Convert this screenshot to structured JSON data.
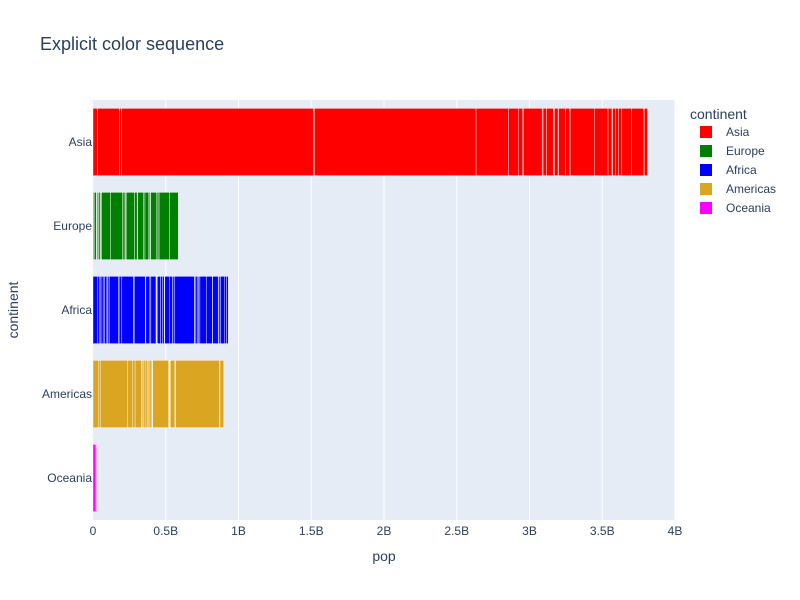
{
  "chart_data": {
    "type": "bar",
    "orientation": "horizontal",
    "barmode": "stack",
    "title": "Explicit color sequence",
    "xlabel": "pop",
    "ylabel": "continent",
    "xlim": [
      0,
      4000000000
    ],
    "x_ticks": [
      {
        "value": 0,
        "label": "0"
      },
      {
        "value": 500000000,
        "label": "0.5B"
      },
      {
        "value": 1000000000,
        "label": "1B"
      },
      {
        "value": 1500000000,
        "label": "1.5B"
      },
      {
        "value": 2000000000,
        "label": "2B"
      },
      {
        "value": 2500000000,
        "label": "2.5B"
      },
      {
        "value": 3000000000,
        "label": "3B"
      },
      {
        "value": 3500000000,
        "label": "3.5B"
      },
      {
        "value": 4000000000,
        "label": "4B"
      }
    ],
    "categories": [
      "Asia",
      "Europe",
      "Africa",
      "Americas",
      "Oceania"
    ],
    "grid": true,
    "legend_title": "continent",
    "legend_position": "top-right",
    "series": [
      {
        "name": "Asia",
        "color": "#ff0000",
        "total": 3811953827,
        "segments": [
          31889923,
          127396,
          150448339,
          14131858,
          1318683096,
          6980412,
          1110396331,
          223547000,
          69453570,
          27499638,
          6426679,
          127467972,
          6053193,
          23301725,
          49044790,
          2505559,
          3921278,
          24821286,
          2874127,
          47761980,
          28901790,
          3204897,
          169270617,
          91077287,
          27601038,
          4553009,
          20378239,
          19314747,
          23174294,
          65068149,
          85262356,
          4018332,
          22211743
        ]
      },
      {
        "name": "Europe",
        "color": "#008000",
        "total": 586098529,
        "segments": [
          3600523,
          8199783,
          10392226,
          4552198,
          7322858,
          4493312,
          10228744,
          5468120,
          5238460,
          61083916,
          82400996,
          10706290,
          9956108,
          301931,
          4109086,
          58147733,
          684736,
          16570613,
          4627926,
          38518241,
          10642836,
          22276056,
          10150265,
          5447502,
          2009245,
          40448191,
          9031088,
          7554661,
          71158647,
          60776238
        ]
      },
      {
        "name": "Africa",
        "color": "#0000ff",
        "total": 929539692,
        "segments": [
          33333216,
          12420476,
          8078314,
          1639131,
          14326203,
          8390505,
          17696293,
          4369038,
          10238807,
          710960,
          64606759,
          3800610,
          18013409,
          496374,
          80264543,
          551201,
          4906585,
          76511887,
          1454867,
          1688359,
          22873338,
          9947814,
          1472041,
          35610177,
          2012649,
          3193942,
          6036914,
          19167654,
          13327079,
          12031795,
          3270065,
          1250882,
          33757175,
          19951656,
          2055080,
          12894865,
          135031164,
          798094,
          8860588,
          199579,
          12267493,
          6144562,
          9118773,
          43997828,
          42292929,
          1133066,
          38139640,
          5701579,
          10276158,
          29170398,
          11746035,
          12311143
        ]
      },
      {
        "name": "Americas",
        "color": "#daa520",
        "total": 898871184,
        "segments": [
          40301927,
          9119152,
          190010647,
          33390141,
          16284741,
          44227550,
          4133884,
          11416987,
          9319622,
          13755680,
          6939688,
          12572928,
          8502814,
          7483763,
          2780132,
          108700891,
          5675356,
          3242173,
          6667147,
          28674757,
          3942491,
          1056608,
          301139947,
          3447496,
          26084662
        ]
      },
      {
        "name": "Oceania",
        "color": "#ff00ff",
        "total": 24549947,
        "segments": [
          20434176,
          4115771
        ]
      }
    ]
  }
}
